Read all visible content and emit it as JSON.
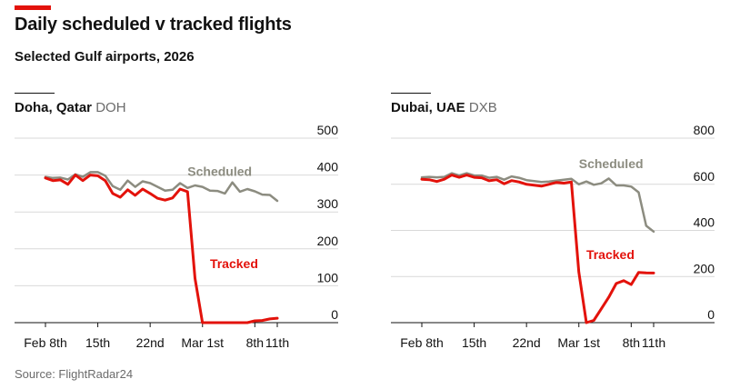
{
  "title": "Daily scheduled v tracked flights",
  "subtitle": "Selected Gulf airports, 2026",
  "source": "Source: FlightRadar24",
  "colors": {
    "accent": "#e3120b",
    "scheduled": "#8c8c80",
    "tracked": "#e3120b",
    "grid": "#d9d9d9",
    "axis": "#121212"
  },
  "chart_data": [
    {
      "type": "line",
      "panel_title": "Doha, Qatar",
      "panel_code": "DOH",
      "xlabel": "",
      "ylabel": "",
      "ylim": [
        0,
        500
      ],
      "yticks": [
        0,
        100,
        200,
        300,
        400,
        500
      ],
      "xlim": [
        "Feb 7th",
        "Mar 12th"
      ],
      "xticks": [
        {
          "day": 0,
          "label": "Feb 8th"
        },
        {
          "day": 7,
          "label": "15th"
        },
        {
          "day": 14,
          "label": "22nd"
        },
        {
          "day": 21,
          "label": "Mar 1st"
        },
        {
          "day": 28,
          "label": "8th"
        },
        {
          "day": 31,
          "label": "11th"
        }
      ],
      "grid": true,
      "series": [
        {
          "name": "Scheduled",
          "color_key": "scheduled",
          "x": [
            0,
            1,
            2,
            3,
            4,
            5,
            6,
            7,
            8,
            9,
            10,
            11,
            12,
            13,
            14,
            15,
            16,
            17,
            18,
            19,
            20,
            21,
            22,
            23,
            24,
            25,
            26,
            27,
            28,
            29,
            30,
            31
          ],
          "y": [
            395,
            392,
            393,
            388,
            402,
            395,
            408,
            408,
            398,
            370,
            360,
            385,
            368,
            383,
            378,
            368,
            358,
            360,
            378,
            365,
            372,
            368,
            358,
            357,
            350,
            380,
            355,
            362,
            356,
            347,
            346,
            330
          ]
        },
        {
          "name": "Tracked",
          "color_key": "tracked",
          "x": [
            0,
            1,
            2,
            3,
            4,
            5,
            6,
            7,
            8,
            9,
            10,
            11,
            12,
            13,
            14,
            15,
            16,
            17,
            18,
            19,
            20,
            21,
            22,
            23,
            24,
            25,
            26,
            27,
            28,
            29,
            30,
            31
          ],
          "y": [
            392,
            385,
            387,
            375,
            400,
            385,
            400,
            398,
            385,
            350,
            340,
            360,
            345,
            362,
            350,
            337,
            332,
            338,
            362,
            355,
            120,
            0,
            0,
            0,
            0,
            0,
            0,
            0,
            5,
            6,
            10,
            12
          ]
        }
      ]
    },
    {
      "type": "line",
      "panel_title": "Dubai, UAE",
      "panel_code": "DXB",
      "xlabel": "",
      "ylabel": "",
      "ylim": [
        0,
        800
      ],
      "yticks": [
        0,
        200,
        400,
        600,
        800
      ],
      "xlim": [
        "Feb 7th",
        "Mar 12th"
      ],
      "xticks": [
        {
          "day": 0,
          "label": "Feb 8th"
        },
        {
          "day": 7,
          "label": "15th"
        },
        {
          "day": 14,
          "label": "22nd"
        },
        {
          "day": 21,
          "label": "Mar 1st"
        },
        {
          "day": 28,
          "label": "8th"
        },
        {
          "day": 31,
          "label": "11th"
        }
      ],
      "grid": true,
      "series": [
        {
          "name": "Scheduled",
          "color_key": "scheduled",
          "x": [
            0,
            1,
            2,
            3,
            4,
            5,
            6,
            7,
            8,
            9,
            10,
            11,
            12,
            13,
            14,
            15,
            16,
            17,
            18,
            19,
            20,
            21,
            22,
            23,
            24,
            25,
            26,
            27,
            28,
            29,
            30,
            31
          ],
          "y": [
            630,
            632,
            630,
            632,
            648,
            638,
            648,
            638,
            638,
            628,
            632,
            620,
            634,
            628,
            618,
            614,
            610,
            612,
            616,
            620,
            624,
            600,
            612,
            598,
            604,
            625,
            595,
            595,
            590,
            565,
            420,
            395
          ]
        },
        {
          "name": "Tracked",
          "color_key": "tracked",
          "x": [
            0,
            1,
            2,
            3,
            4,
            5,
            6,
            7,
            8,
            9,
            10,
            11,
            12,
            13,
            14,
            15,
            16,
            17,
            18,
            19,
            20,
            21,
            22,
            23,
            24,
            25,
            26,
            27,
            28,
            29,
            30,
            31
          ],
          "y": [
            622,
            620,
            612,
            622,
            640,
            630,
            640,
            630,
            628,
            615,
            620,
            602,
            616,
            610,
            600,
            596,
            592,
            600,
            608,
            605,
            610,
            220,
            0,
            10,
            60,
            110,
            170,
            182,
            165,
            218,
            216,
            215
          ]
        }
      ]
    }
  ]
}
